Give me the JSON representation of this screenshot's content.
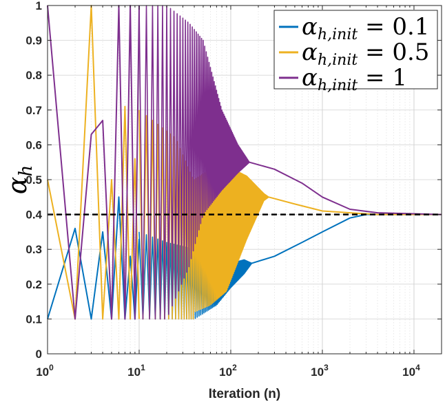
{
  "chart_data": {
    "type": "line",
    "title": "",
    "xlabel": "Iteration (n)",
    "ylabel": {
      "base": "α",
      "sub": "h"
    },
    "xscale": "log",
    "xlim": [
      1,
      20000
    ],
    "ylim": [
      0,
      1
    ],
    "grid": true,
    "x_ticks": [
      {
        "value": 1,
        "base": "10",
        "exp": "0"
      },
      {
        "value": 10,
        "base": "10",
        "exp": "1"
      },
      {
        "value": 100,
        "base": "10",
        "exp": "2"
      },
      {
        "value": 1000,
        "base": "10",
        "exp": "3"
      },
      {
        "value": 10000,
        "base": "10",
        "exp": "4"
      }
    ],
    "y_ticks": [
      {
        "value": 0,
        "label": "0"
      },
      {
        "value": 0.1,
        "label": "0.1"
      },
      {
        "value": 0.2,
        "label": "0.2"
      },
      {
        "value": 0.3,
        "label": "0.3"
      },
      {
        "value": 0.4,
        "label": "0.4"
      },
      {
        "value": 0.5,
        "label": "0.5"
      },
      {
        "value": 0.6,
        "label": "0.6"
      },
      {
        "value": 0.7,
        "label": "0.7"
      },
      {
        "value": 0.8,
        "label": "0.8"
      },
      {
        "value": 0.9,
        "label": "0.9"
      },
      {
        "value": 1,
        "label": "1"
      }
    ],
    "reference_line": {
      "y": 0.4,
      "style": "dashed",
      "color": "#000000"
    },
    "legend_position": "top-right",
    "series": [
      {
        "name": "α_h,init = 0.1",
        "legend": {
          "base": "α",
          "sub": "h,init",
          "value": " = 0.1"
        },
        "color": "#0072BD",
        "start_points": [
          [
            1,
            0.1
          ],
          [
            2,
            0.36
          ],
          [
            3,
            0.1
          ],
          [
            4,
            0.35
          ],
          [
            5,
            0.1
          ],
          [
            6,
            0.45
          ],
          [
            7,
            0.1
          ],
          [
            8,
            0.28
          ],
          [
            9,
            0.1
          ],
          [
            10,
            0.33
          ]
        ],
        "band": [
          [
            10,
            0.1,
            0.35
          ],
          [
            20,
            0.1,
            0.32
          ],
          [
            40,
            0.1,
            0.3
          ],
          [
            70,
            0.14,
            0.28
          ],
          [
            100,
            0.19,
            0.26
          ],
          [
            140,
            0.23,
            0.27
          ],
          [
            170,
            0.26,
            0.26
          ]
        ],
        "tail": [
          [
            170,
            0.26
          ],
          [
            300,
            0.28
          ],
          [
            600,
            0.32
          ],
          [
            1000,
            0.35
          ],
          [
            2000,
            0.39
          ],
          [
            3000,
            0.4
          ],
          [
            20000,
            0.4
          ]
        ]
      },
      {
        "name": "α_h,init = 0.5",
        "legend": {
          "base": "α",
          "sub": "h,init",
          "value": " = 0.5"
        },
        "color": "#EDB120",
        "start_points": [
          [
            1,
            0.5
          ],
          [
            2,
            0.1
          ],
          [
            3,
            1.0
          ],
          [
            4,
            0.1
          ],
          [
            5,
            0.5
          ],
          [
            6,
            0.1
          ],
          [
            7,
            0.71
          ],
          [
            8,
            0.1
          ],
          [
            9,
            0.56
          ],
          [
            10,
            0.1
          ]
        ],
        "band": [
          [
            10,
            0.1,
            0.7
          ],
          [
            25,
            0.1,
            0.62
          ],
          [
            39,
            0.1,
            0.5
          ],
          [
            40,
            0.12,
            0.5
          ],
          [
            60,
            0.14,
            0.53
          ],
          [
            90,
            0.18,
            0.54
          ],
          [
            150,
            0.33,
            0.51
          ],
          [
            230,
            0.44,
            0.46
          ],
          [
            260,
            0.45,
            0.45
          ]
        ],
        "tail": [
          [
            260,
            0.45
          ],
          [
            500,
            0.43
          ],
          [
            1000,
            0.41
          ],
          [
            2000,
            0.405
          ],
          [
            4000,
            0.4
          ],
          [
            20000,
            0.4
          ]
        ]
      },
      {
        "name": "α_h,init = 1",
        "legend": {
          "base": "α",
          "sub": "h,init",
          "value": " = 1"
        },
        "color": "#7E2F8E",
        "start_points": [
          [
            1,
            1.0
          ],
          [
            2,
            0.1
          ],
          [
            3,
            0.63
          ],
          [
            4,
            0.67
          ],
          [
            5,
            0.1
          ],
          [
            6,
            1.0
          ],
          [
            7,
            0.1
          ],
          [
            8,
            1.0
          ],
          [
            9,
            0.1
          ],
          [
            10,
            1.0
          ]
        ],
        "band": [
          [
            10,
            0.1,
            1.0
          ],
          [
            20,
            0.1,
            1.0
          ],
          [
            35,
            0.25,
            0.95
          ],
          [
            50,
            0.4,
            0.9
          ],
          [
            80,
            0.47,
            0.7
          ],
          [
            120,
            0.52,
            0.6
          ],
          [
            160,
            0.55,
            0.55
          ]
        ],
        "tail": [
          [
            160,
            0.55
          ],
          [
            300,
            0.53
          ],
          [
            600,
            0.49
          ],
          [
            1000,
            0.45
          ],
          [
            2000,
            0.415
          ],
          [
            4000,
            0.405
          ],
          [
            20000,
            0.4
          ]
        ]
      }
    ]
  }
}
